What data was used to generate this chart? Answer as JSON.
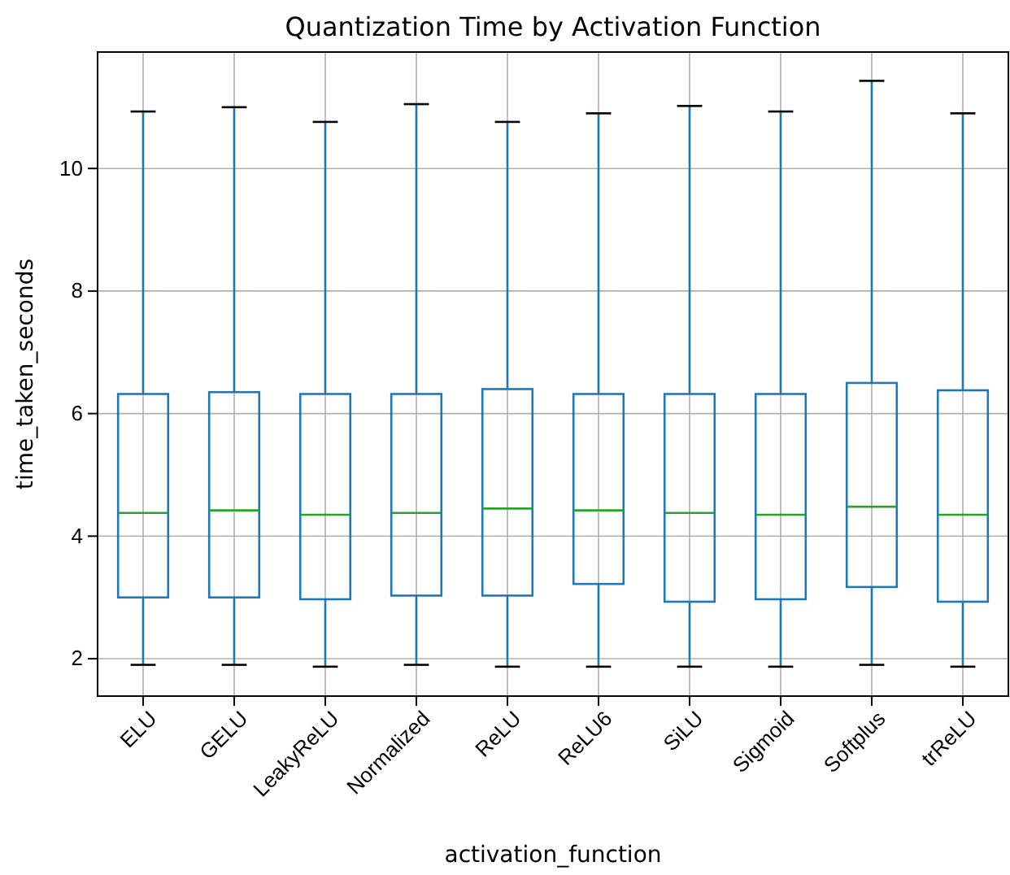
{
  "chart_data": {
    "type": "box",
    "title": "Quantization Time by Activation Function",
    "xlabel": "activation_function",
    "ylabel": "time_taken_seconds",
    "categories": [
      "ELU",
      "GELU",
      "LeakyReLU",
      "Normalized",
      "ReLU",
      "ReLU6",
      "SiLU",
      "Sigmoid",
      "Softplus",
      "trReLU"
    ],
    "series": [
      {
        "color": "#1f77b4",
        "boxes": [
          {
            "low": 1.9,
            "q1": 3.0,
            "median": 4.38,
            "q3": 6.32,
            "high": 10.93
          },
          {
            "low": 1.9,
            "q1": 3.0,
            "median": 4.42,
            "q3": 6.35,
            "high": 11.0
          },
          {
            "low": 1.87,
            "q1": 2.97,
            "median": 4.35,
            "q3": 6.32,
            "high": 10.76
          },
          {
            "low": 1.9,
            "q1": 3.03,
            "median": 4.38,
            "q3": 6.32,
            "high": 11.05
          },
          {
            "low": 1.87,
            "q1": 3.03,
            "median": 4.45,
            "q3": 6.4,
            "high": 10.76
          },
          {
            "low": 1.87,
            "q1": 3.22,
            "median": 4.42,
            "q3": 6.32,
            "high": 10.9
          },
          {
            "low": 1.87,
            "q1": 2.93,
            "median": 4.38,
            "q3": 6.32,
            "high": 11.02
          },
          {
            "low": 1.87,
            "q1": 2.97,
            "median": 4.35,
            "q3": 6.32,
            "high": 10.93
          },
          {
            "low": 1.9,
            "q1": 3.17,
            "median": 4.48,
            "q3": 6.5,
            "high": 11.43
          },
          {
            "low": 1.87,
            "q1": 2.93,
            "median": 4.35,
            "q3": 6.38,
            "high": 10.9
          }
        ]
      }
    ],
    "ylim": [
      1.39,
      11.9
    ],
    "yticks": [
      2,
      4,
      6,
      8,
      10
    ],
    "grid": true
  }
}
